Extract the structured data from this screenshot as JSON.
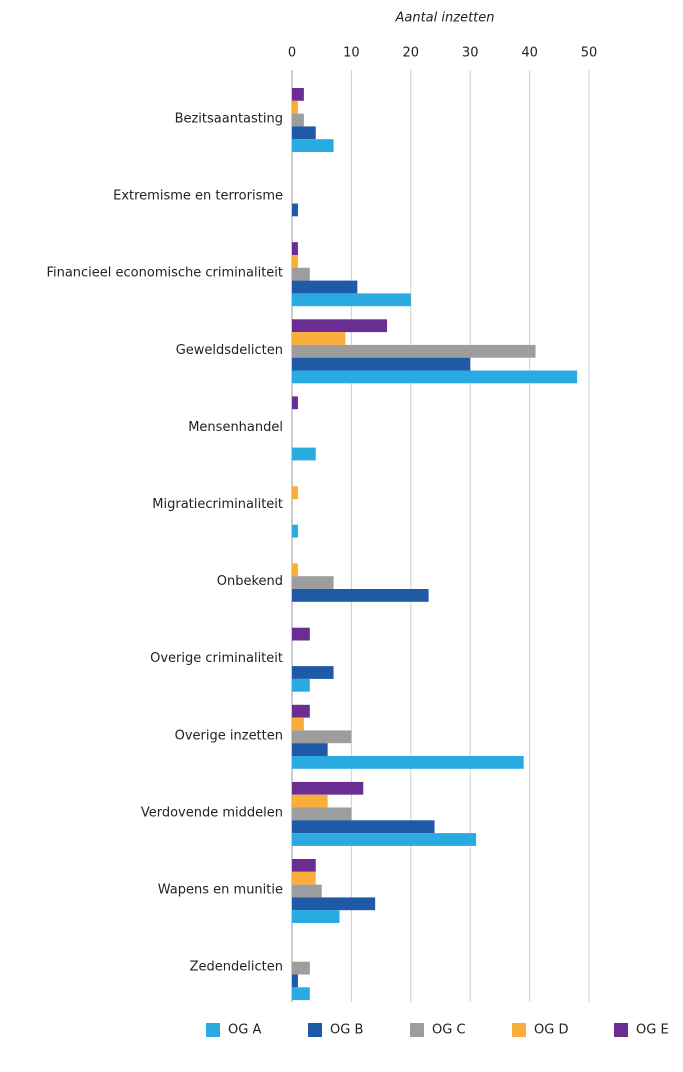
{
  "chart_data": {
    "type": "hbar",
    "x_label": "Aantal inzetten",
    "categories": [
      "Bezitsaantasting",
      "Extremisme en terrorisme",
      "Financieel economische criminaliteit",
      "Geweldsdelicten",
      "Mensenhandel",
      "Migratiecriminaliteit",
      "Onbekend",
      "Overige criminaliteit",
      "Overige inzetten",
      "Verdovende middelen",
      "Wapens en munitie",
      "Zedendelicten"
    ],
    "series": [
      {
        "name": "OG A",
        "color": "#29aae1",
        "values": [
          7,
          0,
          20,
          48,
          4,
          1,
          0,
          3,
          39,
          31,
          8,
          3
        ]
      },
      {
        "name": "OG B",
        "color": "#1f5aa6",
        "values": [
          4,
          1,
          11,
          30,
          0,
          0,
          23,
          7,
          6,
          24,
          14,
          1
        ]
      },
      {
        "name": "OG C",
        "color": "#9d9d9d",
        "values": [
          2,
          0,
          3,
          41,
          0,
          0,
          7,
          0,
          10,
          10,
          5,
          3
        ]
      },
      {
        "name": "OG D",
        "color": "#f9ae3b",
        "values": [
          1,
          0,
          1,
          9,
          0,
          1,
          1,
          0,
          2,
          6,
          4,
          0
        ]
      },
      {
        "name": "OG E",
        "color": "#6a2d91",
        "values": [
          2,
          0,
          1,
          16,
          1,
          0,
          0,
          3,
          3,
          12,
          4,
          0
        ]
      }
    ],
    "xlim": [
      0,
      50
    ],
    "xticks": [
      0,
      10,
      20,
      30,
      40,
      50
    ],
    "grid": true,
    "legend": "bottom"
  }
}
